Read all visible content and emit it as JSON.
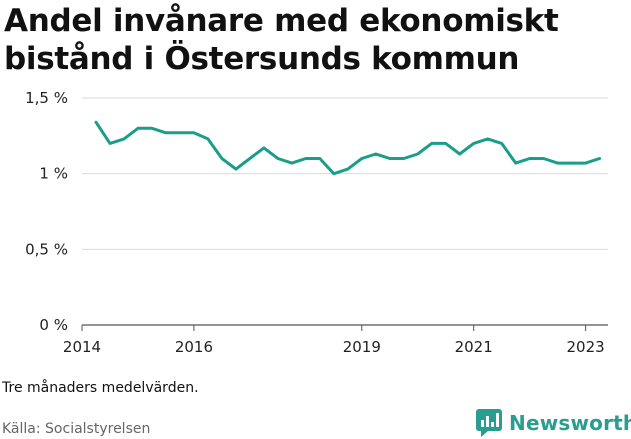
{
  "title_line1": "Andel invånare med ekonomiskt",
  "title_line2": "bistånd i Östersunds kommun",
  "note": "Tre månaders medelvärden.",
  "source": "Källa: Socialstyrelsen",
  "brand": {
    "name": "Newsworthy",
    "icon": "newsworthy-logo-icon",
    "color": "#2a9d8f"
  },
  "chart_data": {
    "type": "line",
    "title": "Andel invånare med ekonomiskt bistånd i Östersunds kommun",
    "xlabel": "",
    "ylabel": "",
    "ylim": [
      0,
      1.5
    ],
    "xlim": [
      2014,
      2023.4
    ],
    "grid": true,
    "legend": "none",
    "line_color": "#1a9e8a",
    "y_ticks": [
      {
        "value": 0,
        "label": "0 %"
      },
      {
        "value": 0.5,
        "label": "0,5 %"
      },
      {
        "value": 1,
        "label": "1 %"
      },
      {
        "value": 1.5,
        "label": "1,5 %"
      }
    ],
    "x_ticks": [
      {
        "value": 2014,
        "label": "2014"
      },
      {
        "value": 2016,
        "label": "2016"
      },
      {
        "value": 2019,
        "label": "2019"
      },
      {
        "value": 2021,
        "label": "2021"
      },
      {
        "value": 2023,
        "label": "2023"
      }
    ],
    "series": [
      {
        "x": [
          2014.25,
          2014.5,
          2014.75,
          2015.0,
          2015.25,
          2015.5,
          2015.75,
          2016.0,
          2016.25,
          2016.5,
          2016.75,
          2017.0,
          2017.25,
          2017.5,
          2017.75,
          2018.0,
          2018.25,
          2018.5,
          2018.75,
          2019.0,
          2019.25,
          2019.5,
          2019.75,
          2020.0,
          2020.25,
          2020.5,
          2020.75,
          2021.0,
          2021.25,
          2021.5,
          2021.75,
          2022.0,
          2022.25,
          2022.5,
          2022.75,
          2023.0,
          2023.25
        ],
        "values": [
          1.34,
          1.2,
          1.23,
          1.3,
          1.3,
          1.27,
          1.27,
          1.27,
          1.23,
          1.1,
          1.03,
          1.1,
          1.17,
          1.1,
          1.07,
          1.1,
          1.1,
          1.0,
          1.03,
          1.1,
          1.13,
          1.1,
          1.1,
          1.13,
          1.2,
          1.2,
          1.13,
          1.2,
          1.23,
          1.2,
          1.07,
          1.1,
          1.1,
          1.07,
          1.07,
          1.07,
          1.1
        ]
      }
    ]
  }
}
